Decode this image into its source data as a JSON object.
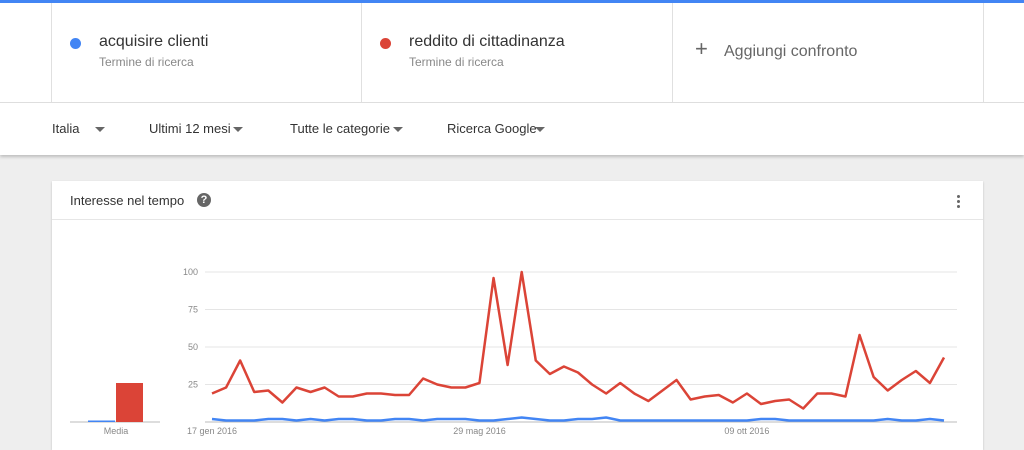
{
  "term_subtitle": "Termine di ricerca",
  "add_compare": "Aggiungi confronto",
  "filters": [
    "Italia",
    "Ultimi 12 mesi",
    "Tutte le categorie",
    "Ricerca Google"
  ],
  "card_title": "Interesse nel tempo",
  "chart_data": {
    "type": "line",
    "categories": [
      "17 gen 2016",
      null,
      null,
      null,
      null,
      null,
      null,
      null,
      null,
      null,
      null,
      null,
      null,
      null,
      null,
      null,
      null,
      null,
      null,
      "29 mag 2016",
      null,
      null,
      null,
      null,
      null,
      null,
      null,
      null,
      null,
      null,
      null,
      null,
      null,
      null,
      null,
      null,
      null,
      null,
      "09 ott 2016",
      null,
      null,
      null,
      null,
      null,
      null,
      null,
      null,
      null,
      null,
      null,
      null,
      null,
      null
    ],
    "series": [
      {
        "name": "acquisire clienti",
        "color": "#4285f4",
        "values": [
          2,
          1,
          1,
          1,
          2,
          2,
          1,
          2,
          1,
          2,
          2,
          1,
          1,
          2,
          2,
          1,
          2,
          2,
          2,
          1,
          1,
          2,
          3,
          2,
          1,
          1,
          2,
          2,
          3,
          1,
          1,
          1,
          1,
          1,
          1,
          1,
          1,
          1,
          1,
          2,
          2,
          1,
          1,
          1,
          1,
          1,
          1,
          1,
          2,
          1,
          1,
          2,
          1
        ]
      },
      {
        "name": "reddito di cittadinanza",
        "color": "#db4437",
        "values": [
          19,
          23,
          41,
          20,
          21,
          13,
          23,
          20,
          23,
          17,
          17,
          19,
          19,
          18,
          18,
          29,
          25,
          23,
          23,
          26,
          96,
          38,
          100,
          41,
          32,
          37,
          33,
          25,
          19,
          26,
          19,
          14,
          21,
          28,
          15,
          17,
          18,
          13,
          19,
          12,
          14,
          15,
          9,
          19,
          19,
          17,
          58,
          30,
          21,
          28,
          34,
          26,
          43
        ]
      }
    ],
    "average": {
      "label": "Media",
      "values": [
        1,
        26
      ]
    },
    "ylim": [
      0,
      100
    ],
    "yticks": [
      25,
      50,
      75,
      100
    ],
    "grid": true
  }
}
